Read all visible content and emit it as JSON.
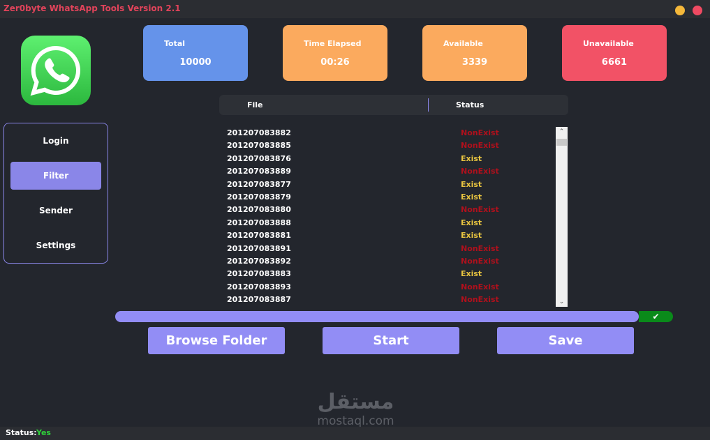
{
  "window": {
    "title": "Zer0byte WhatsApp Tools Version 2.1",
    "minimize_color": "#f5b83a",
    "close_color": "#ef4a62"
  },
  "sidebar": {
    "items": [
      {
        "label": "Login"
      },
      {
        "label": "Filter",
        "active": true
      },
      {
        "label": "Sender"
      },
      {
        "label": "Settings"
      }
    ]
  },
  "stats": [
    {
      "label": "Total",
      "value": "10000",
      "color": "#6593ea"
    },
    {
      "label": "Time Elapsed",
      "value": "00:26",
      "color": "#fbaa5e"
    },
    {
      "label": "Available",
      "value": "3339",
      "color": "#fbaa5e"
    },
    {
      "label": "Unavailable",
      "value": "6661",
      "color": "#f25266"
    }
  ],
  "table": {
    "headers": [
      "File",
      "Status"
    ],
    "rows": [
      {
        "file": "201207083882",
        "status": "NonExist"
      },
      {
        "file": "201207083885",
        "status": "NonExist"
      },
      {
        "file": "201207083876",
        "status": "Exist"
      },
      {
        "file": "201207083889",
        "status": "NonExist"
      },
      {
        "file": "201207083877",
        "status": "Exist"
      },
      {
        "file": "201207083879",
        "status": "Exist"
      },
      {
        "file": "201207083880",
        "status": "NonExist"
      },
      {
        "file": "201207083888",
        "status": "Exist"
      },
      {
        "file": "201207083881",
        "status": "Exist"
      },
      {
        "file": "201207083891",
        "status": "NonExist"
      },
      {
        "file": "201207083892",
        "status": "NonExist"
      },
      {
        "file": "201207083883",
        "status": "Exist"
      },
      {
        "file": "201207083893",
        "status": "NonExist"
      },
      {
        "file": "201207083887",
        "status": "NonExist"
      }
    ],
    "colors": {
      "Exist": "#e8c440",
      "NonExist": "#b0101c"
    }
  },
  "progress": {
    "percent": 100,
    "done_icon": "check-icon"
  },
  "buttons": {
    "browse": "Browse Folder",
    "start": "Start",
    "save": "Save"
  },
  "watermark": {
    "arabic": "مستقل",
    "latin": "mostaql.com"
  },
  "status": {
    "label": "Status:",
    "value": "Yes",
    "value_color": "#2fd23a"
  }
}
